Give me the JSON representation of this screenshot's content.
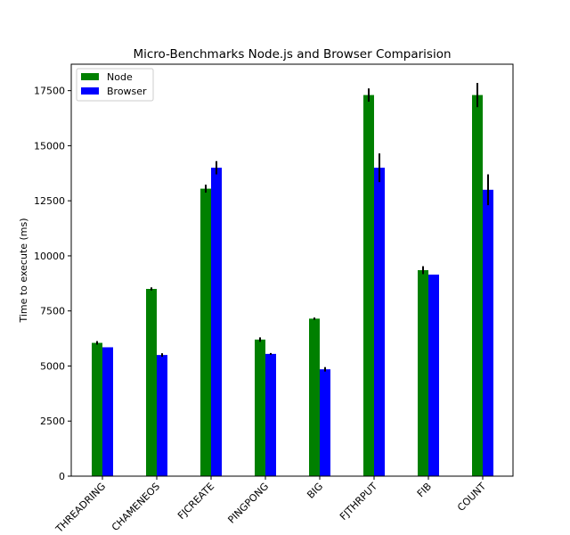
{
  "chart_data": {
    "type": "bar",
    "title": "Micro-Benchmarks Node.js and Browser Comparision",
    "xlabel": "",
    "ylabel": "Time to execute (ms)",
    "ylim": [
      0,
      18700
    ],
    "yticks": [
      0,
      2500,
      5000,
      7500,
      10000,
      12500,
      15000,
      17500
    ],
    "categories": [
      "THREADRING",
      "CHAMENEOS",
      "FJCREATE",
      "PINGPONG",
      "BIG",
      "FJTHRPUT",
      "FIB",
      "COUNT"
    ],
    "series": [
      {
        "name": "Node",
        "color": "#008000",
        "values": [
          6050,
          8500,
          13050,
          6200,
          7150,
          17300,
          9350,
          17300
        ],
        "errors": [
          80,
          70,
          180,
          100,
          50,
          300,
          180,
          550
        ]
      },
      {
        "name": "Browser",
        "color": "#0000ff",
        "values": [
          5850,
          5500,
          14000,
          5550,
          4850,
          14000,
          9150,
          13000
        ],
        "errors": [
          0,
          80,
          300,
          40,
          100,
          650,
          0,
          700
        ]
      }
    ],
    "legend": "top-left",
    "grid": false
  }
}
